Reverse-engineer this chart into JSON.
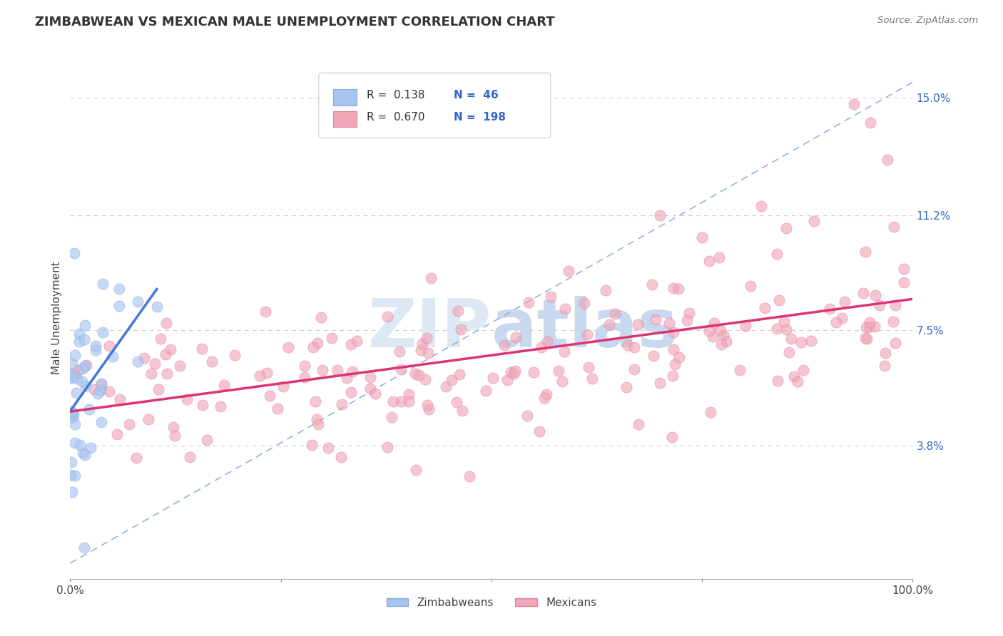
{
  "title": "ZIMBABWEAN VS MEXICAN MALE UNEMPLOYMENT CORRELATION CHART",
  "source": "Source: ZipAtlas.com",
  "ylabel": "Male Unemployment",
  "yticks": [
    0.038,
    0.075,
    0.112,
    0.15
  ],
  "ytick_labels": [
    "3.8%",
    "7.5%",
    "11.2%",
    "15.0%"
  ],
  "xlim": [
    0.0,
    1.0
  ],
  "ylim": [
    -0.005,
    0.163
  ],
  "legend_r_zim": "0.138",
  "legend_n_zim": "46",
  "legend_r_mex": "0.670",
  "legend_n_mex": "198",
  "legend_label_zim": "Zimbabweans",
  "legend_label_mex": "Mexicans",
  "color_zim": "#a8c4f0",
  "color_mex": "#f0a8b8",
  "color_trend_zim": "#4477dd",
  "color_trend_mex": "#dd3377",
  "color_diag": "#88aadd",
  "color_text_blue": "#3366cc",
  "background_color": "#ffffff",
  "grid_color": "#cccccc",
  "watermark_color": "#dde8f5"
}
